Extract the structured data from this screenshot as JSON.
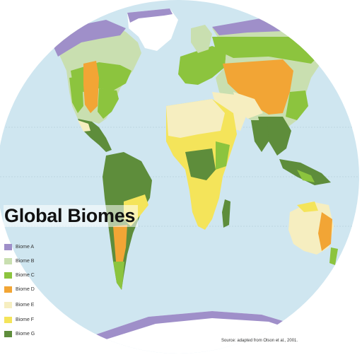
{
  "map": {
    "title": "Global Biomes",
    "source": "Source: adapted from Olson et al., 2001.",
    "ocean_color": "#cfe6f0",
    "ice_color": "#ffffff",
    "legend": [
      {
        "label": "Biome A",
        "color": "#9f8fc9"
      },
      {
        "label": "Biome B",
        "color": "#c9dfb0"
      },
      {
        "label": "Biome C",
        "color": "#8cc43e"
      },
      {
        "label": "Biome D",
        "color": "#f2a535"
      },
      {
        "label": "Biome E",
        "color": "#f6eec0"
      },
      {
        "label": "Biome F",
        "color": "#f4e45a"
      },
      {
        "label": "Biome G",
        "color": "#5e8d3b"
      }
    ]
  }
}
